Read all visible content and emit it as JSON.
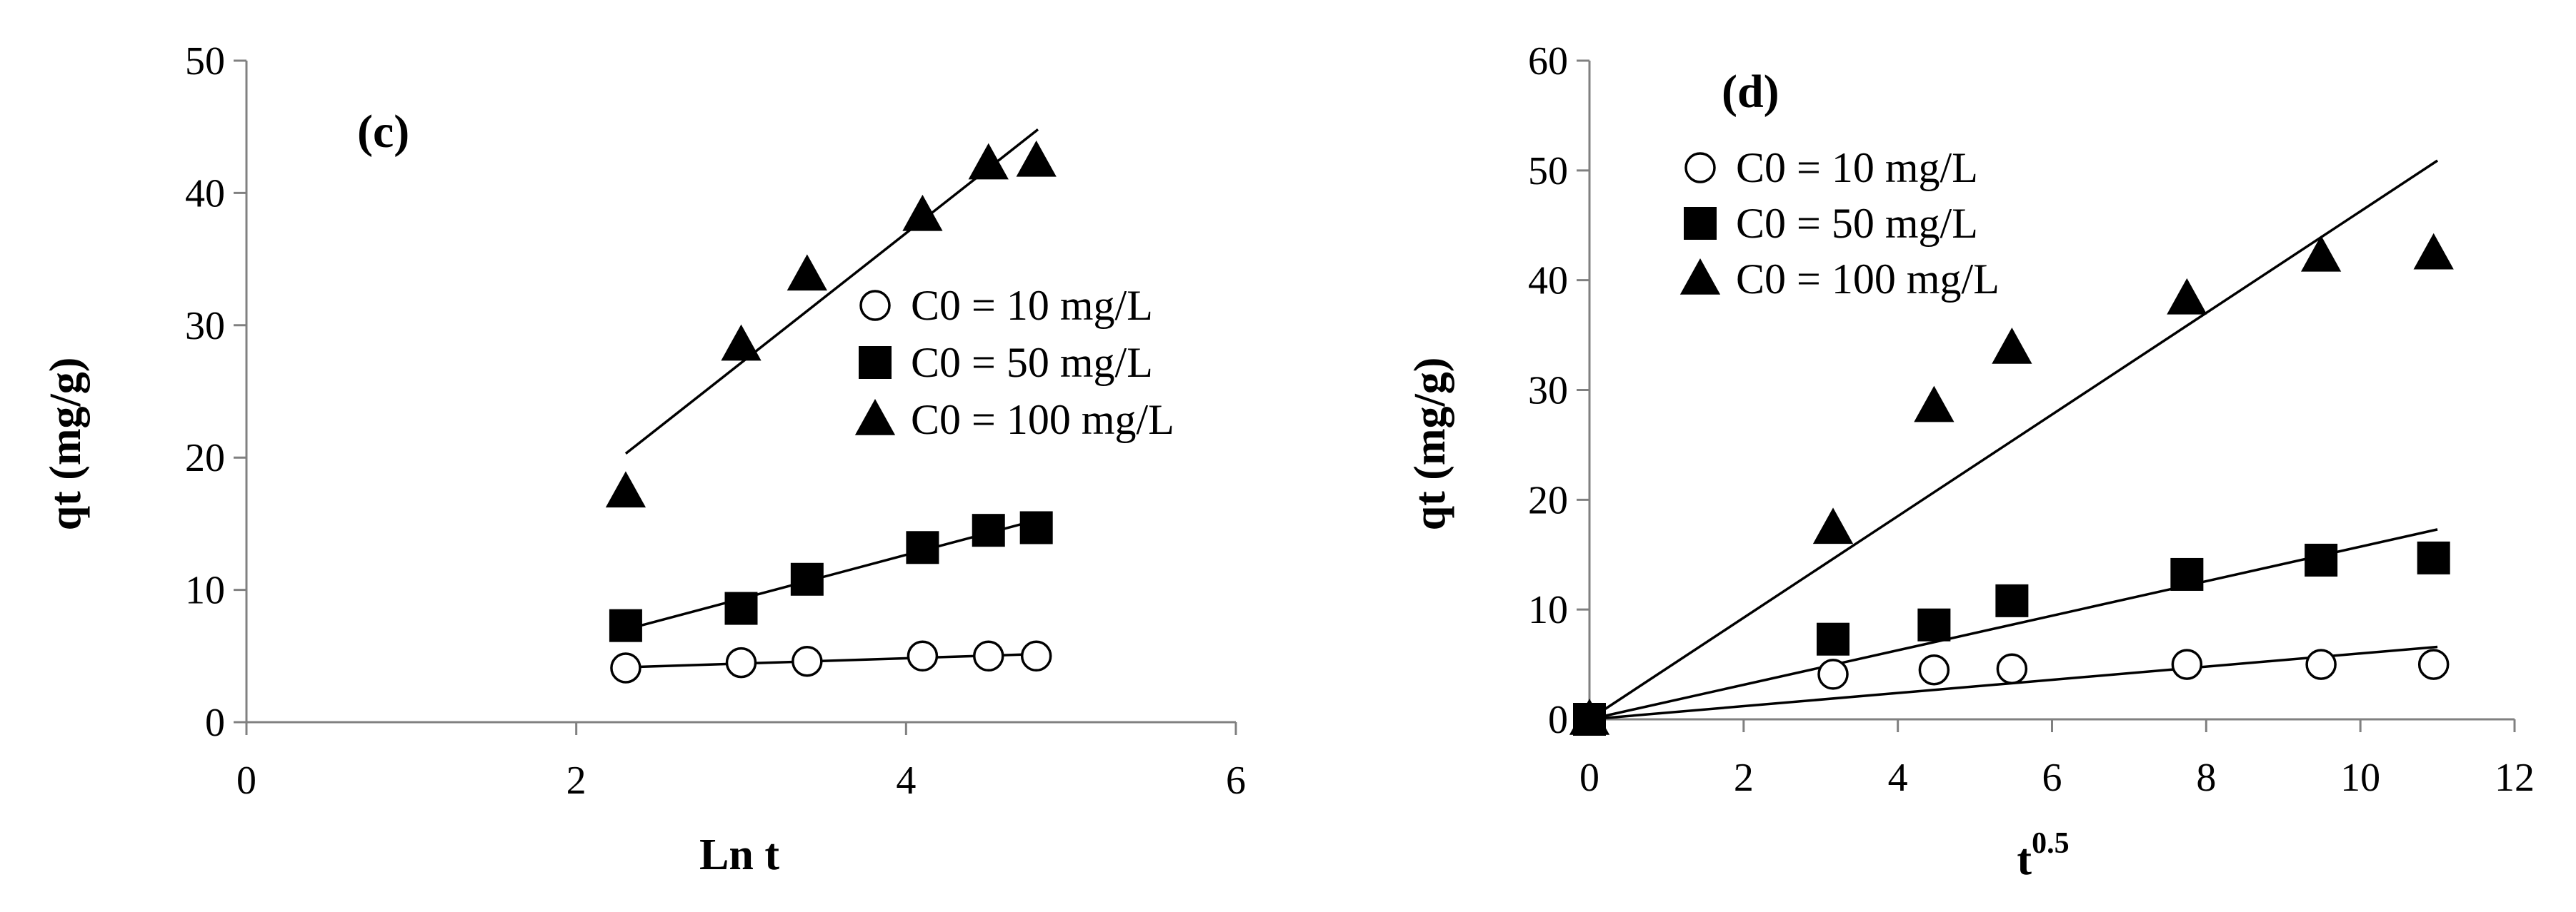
{
  "colors": {
    "axis": "#808080",
    "marker": "#000000",
    "background": "#ffffff"
  },
  "chart_data": [
    {
      "type": "scatter",
      "panel_label": "(c)",
      "xlabel": "Ln t",
      "ylabel": "qt (mg/g)",
      "xlim": [
        0,
        6
      ],
      "ylim": [
        0,
        50
      ],
      "xticks": [
        0,
        2,
        4,
        6
      ],
      "yticks": [
        0,
        10,
        20,
        30,
        40,
        50
      ],
      "legend_position": "right",
      "series": [
        {
          "name": "C0 = 10 mg/L",
          "marker": "circle-open",
          "x": [
            2.3,
            3.0,
            3.4,
            4.1,
            4.5,
            4.79
          ],
          "y": [
            4.1,
            4.5,
            4.6,
            5.0,
            5.0,
            5.0
          ],
          "fit": {
            "x": [
              2.3,
              4.8
            ],
            "y": [
              4.15,
              5.15
            ]
          }
        },
        {
          "name": "C0 = 50 mg/L",
          "marker": "square",
          "x": [
            2.3,
            3.0,
            3.4,
            4.1,
            4.5,
            4.79
          ],
          "y": [
            7.3,
            8.6,
            10.8,
            13.2,
            14.5,
            14.7
          ],
          "fit": {
            "x": [
              2.3,
              4.8
            ],
            "y": [
              7.0,
              15.3
            ]
          }
        },
        {
          "name": "C0 = 100 mg/L",
          "marker": "triangle",
          "x": [
            2.3,
            3.0,
            3.4,
            4.1,
            4.5,
            4.79
          ],
          "y": [
            17.4,
            28.5,
            33.8,
            38.3,
            42.2,
            42.4
          ],
          "fit": {
            "x": [
              2.3,
              4.8
            ],
            "y": [
              20.3,
              44.8
            ]
          }
        }
      ]
    },
    {
      "type": "scatter",
      "panel_label": "(d)",
      "xlabel_base": "t",
      "xlabel_sup": "0.5",
      "ylabel": "qt (mg/g)",
      "xlim": [
        0,
        12
      ],
      "ylim": [
        0,
        60
      ],
      "xticks": [
        0,
        2,
        4,
        6,
        8,
        10,
        12
      ],
      "yticks": [
        0,
        10,
        20,
        30,
        40,
        50,
        60
      ],
      "legend_position": "top-left",
      "series": [
        {
          "name": "C0 = 10 mg/L",
          "marker": "circle-open",
          "x": [
            0,
            3.16,
            4.47,
            5.48,
            7.75,
            9.49,
            10.95
          ],
          "y": [
            0,
            4.1,
            4.5,
            4.6,
            5.0,
            5.0,
            5.0
          ],
          "fit": {
            "x": [
              0,
              11
            ],
            "y": [
              0,
              6.6
            ]
          }
        },
        {
          "name": "C0 = 50 mg/L",
          "marker": "square",
          "x": [
            0,
            3.16,
            4.47,
            5.48,
            7.75,
            9.49,
            10.95
          ],
          "y": [
            0,
            7.3,
            8.6,
            10.8,
            13.2,
            14.5,
            14.7
          ],
          "fit": {
            "x": [
              0,
              11
            ],
            "y": [
              0,
              17.3
            ]
          }
        },
        {
          "name": "C0 = 100 mg/L",
          "marker": "triangle",
          "x": [
            0,
            3.16,
            4.47,
            5.48,
            7.75,
            9.49,
            10.95
          ],
          "y": [
            0,
            17.4,
            28.5,
            33.8,
            38.3,
            42.2,
            42.4
          ],
          "fit": {
            "x": [
              0,
              11
            ],
            "y": [
              0,
              50.9
            ]
          }
        }
      ]
    }
  ]
}
